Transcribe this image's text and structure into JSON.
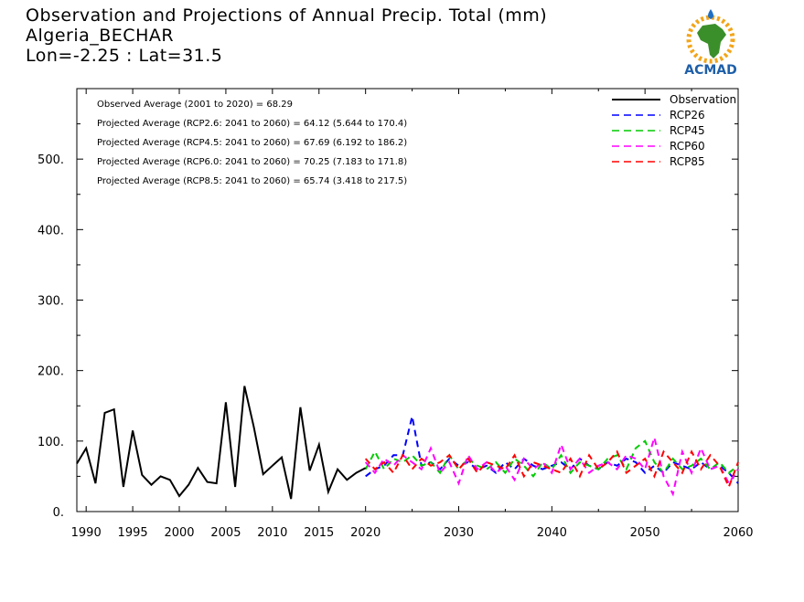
{
  "header": {
    "title_line1": "Observation and Projections of Annual Precip. Total (mm)",
    "title_line2": "Algeria_BECHAR",
    "title_line3": "Lon=-2.25 : Lat=31.5"
  },
  "logo": {
    "text": "ACMAD"
  },
  "chart_data": {
    "type": "line",
    "xlim": [
      1989,
      2060
    ],
    "ylim": [
      0,
      600
    ],
    "grid": false,
    "legend_position": "top-right",
    "x_ticks": [
      {
        "value": 1990,
        "label": "1990"
      },
      {
        "value": 1995,
        "label": "1995"
      },
      {
        "value": 2000,
        "label": "2000"
      },
      {
        "value": 2005,
        "label": "2005"
      },
      {
        "value": 2010,
        "label": "2010"
      },
      {
        "value": 2015,
        "label": "2015"
      },
      {
        "value": 2020,
        "label": "2020"
      },
      {
        "value": 2030,
        "label": "2030"
      },
      {
        "value": 2040,
        "label": "2040"
      },
      {
        "value": 2050,
        "label": "2050"
      },
      {
        "value": 2060,
        "label": "2060"
      }
    ],
    "y_ticks": [
      {
        "value": 0,
        "label": "0."
      },
      {
        "value": 100,
        "label": "100."
      },
      {
        "value": 200,
        "label": "200."
      },
      {
        "value": 300,
        "label": "300."
      },
      {
        "value": 400,
        "label": "400."
      },
      {
        "value": 500,
        "label": "500."
      }
    ],
    "annotations": [
      "Observed Average (2001 to 2020) = 68.29",
      "Projected Average (RCP2.6: 2041 to 2060) = 64.12 (5.644 to 170.4)",
      "Projected Average (RCP4.5: 2041 to 2060) = 67.69 (6.192 to 186.2)",
      "Projected Average (RCP6.0: 2041 to 2060) = 70.25 (7.183 to 171.8)",
      "Projected Average (RCP8.5: 2041 to 2060) = 65.74 (3.418 to 217.5)"
    ],
    "series": [
      {
        "name": "Observation",
        "color": "#000000",
        "dash": "solid",
        "x": [
          1989,
          1990,
          1991,
          1992,
          1993,
          1994,
          1995,
          1996,
          1997,
          1998,
          1999,
          2000,
          2001,
          2002,
          2003,
          2004,
          2005,
          2006,
          2007,
          2008,
          2009,
          2010,
          2011,
          2012,
          2013,
          2014,
          2015,
          2016,
          2017,
          2018,
          2019,
          2020
        ],
        "y": [
          68,
          90,
          40,
          140,
          145,
          35,
          115,
          52,
          38,
          50,
          45,
          22,
          38,
          62,
          42,
          40,
          155,
          35,
          178,
          120,
          53,
          65,
          77,
          18,
          148,
          58,
          95,
          28,
          60,
          45,
          55,
          62
        ]
      },
      {
        "name": "RCP26",
        "color": "#0000ff",
        "dash": "dashed",
        "x": [
          2020,
          2021,
          2022,
          2023,
          2024,
          2025,
          2026,
          2027,
          2028,
          2029,
          2030,
          2031,
          2032,
          2033,
          2034,
          2035,
          2036,
          2037,
          2038,
          2039,
          2040,
          2041,
          2042,
          2043,
          2044,
          2045,
          2046,
          2047,
          2048,
          2049,
          2050,
          2051,
          2052,
          2053,
          2054,
          2055,
          2056,
          2057,
          2058,
          2059,
          2060
        ],
        "y": [
          50,
          60,
          65,
          80,
          80,
          135,
          65,
          70,
          60,
          75,
          65,
          70,
          60,
          65,
          55,
          70,
          60,
          75,
          65,
          60,
          65,
          70,
          60,
          75,
          65,
          60,
          70,
          65,
          75,
          70,
          55,
          65,
          55,
          70,
          65,
          60,
          70,
          60,
          65,
          55,
          40
        ]
      },
      {
        "name": "RCP45",
        "color": "#00cc00",
        "dash": "dashed",
        "x": [
          2020,
          2021,
          2022,
          2023,
          2024,
          2025,
          2026,
          2027,
          2028,
          2029,
          2030,
          2031,
          2032,
          2033,
          2034,
          2035,
          2036,
          2037,
          2038,
          2039,
          2040,
          2041,
          2042,
          2043,
          2044,
          2045,
          2046,
          2047,
          2048,
          2049,
          2050,
          2051,
          2052,
          2053,
          2054,
          2055,
          2056,
          2057,
          2058,
          2059,
          2060
        ],
        "y": [
          60,
          85,
          60,
          75,
          70,
          80,
          65,
          70,
          55,
          80,
          60,
          75,
          65,
          60,
          70,
          55,
          75,
          65,
          50,
          70,
          60,
          80,
          55,
          70,
          65,
          60,
          75,
          80,
          60,
          90,
          100,
          70,
          55,
          75,
          60,
          65,
          75,
          60,
          70,
          55,
          65
        ]
      },
      {
        "name": "RCP60",
        "color": "#ff00ff",
        "dash": "dashed",
        "x": [
          2020,
          2021,
          2022,
          2023,
          2024,
          2025,
          2026,
          2027,
          2028,
          2029,
          2030,
          2031,
          2032,
          2033,
          2034,
          2035,
          2036,
          2037,
          2038,
          2039,
          2040,
          2041,
          2042,
          2043,
          2044,
          2045,
          2046,
          2047,
          2048,
          2049,
          2050,
          2051,
          2052,
          2053,
          2054,
          2055,
          2056,
          2057,
          2058,
          2059,
          2060
        ],
        "y": [
          70,
          55,
          75,
          65,
          80,
          70,
          60,
          90,
          55,
          70,
          40,
          80,
          60,
          70,
          55,
          65,
          45,
          75,
          60,
          70,
          55,
          95,
          60,
          75,
          55,
          65,
          70,
          60,
          80,
          75,
          60,
          105,
          50,
          25,
          85,
          55,
          90,
          60,
          65,
          40,
          60
        ]
      },
      {
        "name": "RCP85",
        "color": "#ff0000",
        "dash": "dashed",
        "x": [
          2020,
          2021,
          2022,
          2023,
          2024,
          2025,
          2026,
          2027,
          2028,
          2029,
          2030,
          2031,
          2032,
          2033,
          2034,
          2035,
          2036,
          2037,
          2038,
          2039,
          2040,
          2041,
          2042,
          2043,
          2044,
          2045,
          2046,
          2047,
          2048,
          2049,
          2050,
          2051,
          2052,
          2053,
          2054,
          2055,
          2056,
          2057,
          2058,
          2059,
          2060
        ],
        "y": [
          75,
          60,
          70,
          55,
          80,
          60,
          75,
          65,
          70,
          80,
          60,
          75,
          55,
          70,
          65,
          60,
          80,
          50,
          70,
          65,
          60,
          55,
          75,
          50,
          80,
          60,
          70,
          85,
          55,
          65,
          75,
          50,
          85,
          70,
          55,
          85,
          60,
          80,
          65,
          35,
          70
        ]
      }
    ]
  }
}
